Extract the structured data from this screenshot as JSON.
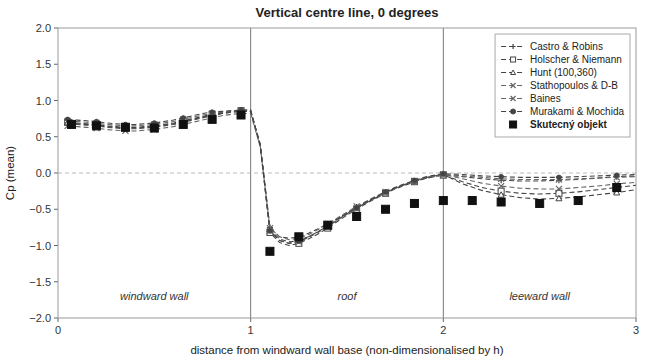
{
  "chart_data": {
    "type": "line",
    "title": "Vertical centre line, 0 degrees",
    "xlabel": "distance from windward wall base (non-dimensionalised by h)",
    "ylabel": "Cp (mean)",
    "xlim": [
      0,
      3
    ],
    "ylim": [
      -2.0,
      2.0
    ],
    "xticks": [
      0,
      1,
      2,
      3
    ],
    "yticks": [
      {
        "value": -2.0,
        "label": "−2.0"
      },
      {
        "value": -1.5,
        "label": "−1.5"
      },
      {
        "value": -1.0,
        "label": "−1.0"
      },
      {
        "value": -0.5,
        "label": "−0.5"
      },
      {
        "value": 0.0,
        "label": "0.0"
      },
      {
        "value": 0.5,
        "label": "0.5"
      },
      {
        "value": 1.0,
        "label": "1.0"
      },
      {
        "value": 1.5,
        "label": "1.5"
      },
      {
        "value": 2.0,
        "label": "2.0"
      }
    ],
    "grid": false,
    "legend": "upper right",
    "vlines": [
      1.0,
      2.0
    ],
    "hlines": [
      0.0
    ],
    "annotations": [
      {
        "x": 0.5,
        "y": -1.75,
        "text": "windward wall"
      },
      {
        "x": 1.5,
        "y": -1.75,
        "text": "roof"
      },
      {
        "x": 2.5,
        "y": -1.75,
        "text": "leeward wall"
      }
    ],
    "series": [
      {
        "name": "Castro & Robins",
        "color": "#444444",
        "line_style": "dashed",
        "marker": "plus",
        "x": [
          0.05,
          0.1,
          0.15,
          0.2,
          0.25,
          0.3,
          0.35,
          0.4,
          0.45,
          0.5,
          0.55,
          0.6,
          0.65,
          0.7,
          0.75,
          0.8,
          0.85,
          0.9,
          0.95,
          1.0,
          1.05,
          1.1,
          1.15,
          1.2,
          1.25,
          1.3,
          1.35,
          1.4,
          1.45,
          1.5,
          1.55,
          1.6,
          1.65,
          1.7,
          1.75,
          1.8,
          1.85,
          1.9,
          1.95,
          2.0,
          2.1,
          2.2,
          2.3,
          2.4,
          2.5,
          2.6,
          2.7,
          2.8,
          2.9,
          3.0
        ],
        "values": [
          0.68,
          0.67,
          0.66,
          0.65,
          0.63,
          0.62,
          0.61,
          0.61,
          0.62,
          0.63,
          0.65,
          0.67,
          0.7,
          0.73,
          0.76,
          0.79,
          0.82,
          0.84,
          0.85,
          0.85,
          0.4,
          -0.75,
          -0.88,
          -0.9,
          -0.88,
          -0.83,
          -0.77,
          -0.7,
          -0.63,
          -0.55,
          -0.47,
          -0.4,
          -0.33,
          -0.27,
          -0.21,
          -0.16,
          -0.12,
          -0.08,
          -0.05,
          -0.03,
          -0.05,
          -0.08,
          -0.1,
          -0.11,
          -0.11,
          -0.1,
          -0.09,
          -0.07,
          -0.05,
          -0.04
        ]
      },
      {
        "name": "Holscher & Niemann",
        "color": "#444444",
        "line_style": "dashed",
        "marker": "square",
        "x": [
          0.05,
          0.1,
          0.15,
          0.2,
          0.25,
          0.3,
          0.35,
          0.4,
          0.45,
          0.5,
          0.55,
          0.6,
          0.65,
          0.7,
          0.75,
          0.8,
          0.85,
          0.9,
          0.95,
          1.0,
          1.05,
          1.1,
          1.15,
          1.2,
          1.25,
          1.3,
          1.35,
          1.4,
          1.45,
          1.5,
          1.55,
          1.6,
          1.65,
          1.7,
          1.75,
          1.8,
          1.85,
          1.9,
          1.95,
          2.0,
          2.1,
          2.2,
          2.3,
          2.4,
          2.5,
          2.6,
          2.7,
          2.8,
          2.9,
          3.0
        ],
        "values": [
          0.7,
          0.69,
          0.68,
          0.67,
          0.65,
          0.64,
          0.63,
          0.63,
          0.64,
          0.65,
          0.67,
          0.69,
          0.72,
          0.75,
          0.78,
          0.81,
          0.83,
          0.85,
          0.86,
          0.86,
          0.38,
          -0.82,
          -0.96,
          -1.0,
          -0.97,
          -0.91,
          -0.84,
          -0.76,
          -0.67,
          -0.58,
          -0.5,
          -0.42,
          -0.35,
          -0.28,
          -0.22,
          -0.17,
          -0.12,
          -0.08,
          -0.05,
          -0.03,
          -0.12,
          -0.2,
          -0.25,
          -0.28,
          -0.29,
          -0.28,
          -0.26,
          -0.23,
          -0.2,
          -0.17
        ]
      },
      {
        "name": "Hunt (100,360)",
        "color": "#444444",
        "line_style": "dashed",
        "marker": "triangle",
        "x": [
          0.05,
          0.1,
          0.15,
          0.2,
          0.25,
          0.3,
          0.35,
          0.4,
          0.45,
          0.5,
          0.55,
          0.6,
          0.65,
          0.7,
          0.75,
          0.8,
          0.85,
          0.9,
          0.95,
          1.0,
          1.05,
          1.1,
          1.15,
          1.2,
          1.25,
          1.3,
          1.35,
          1.4,
          1.45,
          1.5,
          1.55,
          1.6,
          1.65,
          1.7,
          1.75,
          1.8,
          1.85,
          1.9,
          1.95,
          2.0,
          2.1,
          2.2,
          2.3,
          2.4,
          2.5,
          2.6,
          2.7,
          2.8,
          2.9,
          3.0
        ],
        "values": [
          0.69,
          0.68,
          0.67,
          0.66,
          0.64,
          0.63,
          0.62,
          0.62,
          0.63,
          0.64,
          0.66,
          0.68,
          0.71,
          0.74,
          0.77,
          0.8,
          0.82,
          0.84,
          0.85,
          0.85,
          0.38,
          -0.78,
          -0.91,
          -0.95,
          -0.93,
          -0.88,
          -0.81,
          -0.73,
          -0.65,
          -0.56,
          -0.48,
          -0.41,
          -0.34,
          -0.27,
          -0.21,
          -0.16,
          -0.11,
          -0.07,
          -0.04,
          -0.02,
          -0.15,
          -0.24,
          -0.3,
          -0.34,
          -0.36,
          -0.35,
          -0.33,
          -0.3,
          -0.27,
          -0.23
        ]
      },
      {
        "name": "Stathopoulos & D-B",
        "color": "#666666",
        "line_style": "dashed",
        "marker": "x",
        "x": [
          0.05,
          0.1,
          0.15,
          0.2,
          0.25,
          0.3,
          0.35,
          0.4,
          0.45,
          0.5,
          0.55,
          0.6,
          0.65,
          0.7,
          0.75,
          0.8,
          0.85,
          0.9,
          0.95,
          1.0,
          1.05,
          1.1,
          1.15,
          1.2,
          1.25,
          1.3,
          1.35,
          1.4,
          1.45,
          1.5,
          1.55,
          1.6,
          1.65,
          1.7,
          1.75,
          1.8,
          1.85,
          1.9,
          1.95,
          2.0,
          2.1,
          2.2,
          2.3,
          2.4,
          2.5,
          2.6,
          2.7,
          2.8,
          2.9,
          3.0
        ],
        "values": [
          0.72,
          0.71,
          0.7,
          0.69,
          0.67,
          0.66,
          0.65,
          0.65,
          0.66,
          0.67,
          0.69,
          0.71,
          0.74,
          0.77,
          0.8,
          0.82,
          0.84,
          0.85,
          0.86,
          0.86,
          0.36,
          -0.8,
          -0.93,
          -0.97,
          -0.95,
          -0.89,
          -0.82,
          -0.74,
          -0.65,
          -0.57,
          -0.49,
          -0.41,
          -0.34,
          -0.27,
          -0.21,
          -0.16,
          -0.11,
          -0.07,
          -0.04,
          -0.02,
          -0.08,
          -0.14,
          -0.18,
          -0.21,
          -0.22,
          -0.22,
          -0.2,
          -0.18,
          -0.15,
          -0.13
        ]
      },
      {
        "name": "Baines",
        "color": "#666666",
        "line_style": "dashed",
        "marker": "x",
        "x": [
          0.05,
          0.1,
          0.15,
          0.2,
          0.25,
          0.3,
          0.35,
          0.4,
          0.45,
          0.5,
          0.55,
          0.6,
          0.65,
          0.7,
          0.75,
          0.8,
          0.85,
          0.9,
          0.95,
          1.0,
          1.05,
          1.1,
          1.15,
          1.2,
          1.25,
          1.3,
          1.35,
          1.4,
          1.45,
          1.5,
          1.55,
          1.6,
          1.65,
          1.7,
          1.75,
          1.8,
          1.85,
          1.9,
          1.95,
          2.0,
          2.1,
          2.2,
          2.3,
          2.4,
          2.5,
          2.6,
          2.7,
          2.8,
          2.9,
          3.0
        ],
        "values": [
          0.65,
          0.64,
          0.63,
          0.62,
          0.6,
          0.59,
          0.58,
          0.58,
          0.59,
          0.6,
          0.62,
          0.64,
          0.67,
          0.7,
          0.73,
          0.76,
          0.79,
          0.81,
          0.82,
          0.82,
          0.36,
          -0.76,
          -0.88,
          -0.92,
          -0.9,
          -0.85,
          -0.78,
          -0.7,
          -0.62,
          -0.54,
          -0.46,
          -0.39,
          -0.32,
          -0.26,
          -0.2,
          -0.15,
          -0.11,
          -0.07,
          -0.04,
          -0.02,
          -0.04,
          -0.06,
          -0.08,
          -0.09,
          -0.09,
          -0.09,
          -0.08,
          -0.07,
          -0.06,
          -0.05
        ]
      },
      {
        "name": "Murakami & Mochida",
        "color": "#444444",
        "line_style": "dashed",
        "marker": "circle",
        "x": [
          0.05,
          0.1,
          0.15,
          0.2,
          0.25,
          0.3,
          0.35,
          0.4,
          0.45,
          0.5,
          0.55,
          0.6,
          0.65,
          0.7,
          0.75,
          0.8,
          0.85,
          0.9,
          0.95,
          1.0,
          1.05,
          1.1,
          1.15,
          1.2,
          1.25,
          1.3,
          1.35,
          1.4,
          1.45,
          1.5,
          1.55,
          1.6,
          1.65,
          1.7,
          1.75,
          1.8,
          1.85,
          1.9,
          1.95,
          2.0,
          2.1,
          2.2,
          2.3,
          2.4,
          2.5,
          2.6,
          2.7,
          2.8,
          2.9,
          3.0
        ],
        "values": [
          0.74,
          0.73,
          0.72,
          0.71,
          0.69,
          0.68,
          0.67,
          0.67,
          0.68,
          0.69,
          0.71,
          0.73,
          0.76,
          0.79,
          0.82,
          0.84,
          0.85,
          0.86,
          0.87,
          0.87,
          0.37,
          -0.8,
          -0.93,
          -0.97,
          -0.94,
          -0.88,
          -0.81,
          -0.73,
          -0.64,
          -0.56,
          -0.48,
          -0.4,
          -0.33,
          -0.26,
          -0.2,
          -0.15,
          -0.1,
          -0.06,
          -0.03,
          -0.01,
          -0.02,
          -0.04,
          -0.05,
          -0.06,
          -0.06,
          -0.06,
          -0.05,
          -0.04,
          -0.03,
          -0.02
        ]
      },
      {
        "name": "Skutecný objekt",
        "color": "#111111",
        "line_style": "none",
        "marker": "square",
        "x": [
          0.07,
          0.2,
          0.35,
          0.5,
          0.65,
          0.8,
          0.95,
          1.1,
          1.25,
          1.4,
          1.55,
          1.7,
          1.85,
          2.0,
          2.15,
          2.3,
          2.5,
          2.7,
          2.9
        ],
        "values": [
          0.67,
          0.65,
          0.63,
          0.62,
          0.67,
          0.74,
          0.8,
          -1.08,
          -0.88,
          -0.72,
          -0.6,
          -0.5,
          -0.42,
          -0.38,
          -0.38,
          -0.4,
          -0.42,
          -0.38,
          -0.2
        ]
      }
    ]
  }
}
